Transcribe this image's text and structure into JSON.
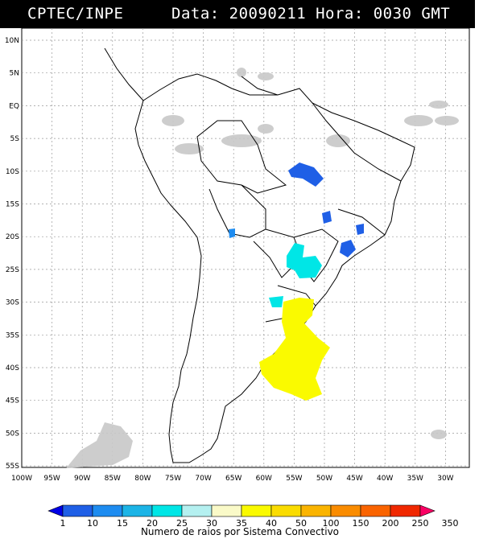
{
  "header": {
    "source": "CPTEC/INPE",
    "datetime": "Data: 20090211 Hora: 0030 GMT"
  },
  "map": {
    "lat_labels": [
      "10N",
      "5N",
      "EQ",
      "5S",
      "10S",
      "15S",
      "20S",
      "25S",
      "30S",
      "35S",
      "40S",
      "45S",
      "50S",
      "55S"
    ],
    "lon_labels": [
      "100W",
      "95W",
      "90W",
      "85W",
      "80W",
      "75W",
      "70W",
      "65W",
      "60W",
      "55W",
      "50W",
      "45W",
      "40W",
      "35W",
      "30W"
    ]
  },
  "scale": {
    "values": [
      "1",
      "10",
      "15",
      "20",
      "25",
      "30",
      "35",
      "40",
      "50",
      "100",
      "150",
      "200",
      "250",
      "350"
    ],
    "colors": [
      "#0000e6",
      "#1f5fe6",
      "#1e8cf0",
      "#1cb4e6",
      "#00e6e6",
      "#b4f0f0",
      "#fafac8",
      "#fafa00",
      "#fadc00",
      "#fab400",
      "#fa8c00",
      "#fa6400",
      "#f02800",
      "#fa0064"
    ],
    "title": "Numero de raios por Sistema Convectivo"
  }
}
